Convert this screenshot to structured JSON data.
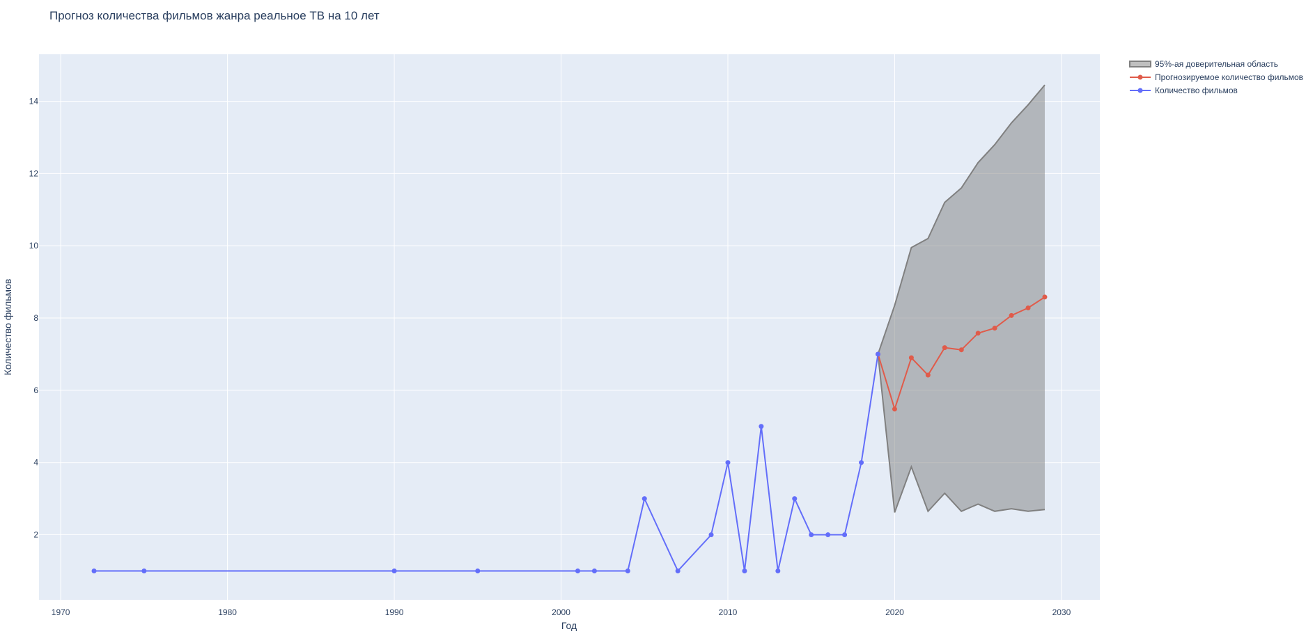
{
  "chart_data": {
    "type": "line",
    "title": "Прогноз количества фильмов жанра реальное ТВ на 10 лет",
    "xlabel": "Год",
    "ylabel": "Количество фильмов",
    "xlim": [
      1968.7,
      2032.3
    ],
    "ylim": [
      0.2,
      15.3
    ],
    "x_ticks": [
      1970,
      1980,
      1990,
      2000,
      2010,
      2020,
      2030
    ],
    "y_ticks": [
      2,
      4,
      6,
      8,
      10,
      12,
      14
    ],
    "grid": true,
    "legend_position": "top-right",
    "series": [
      {
        "name": "95%-ая доверительная область",
        "kind": "band",
        "color": "#808080",
        "fill": "rgba(128,128,128,0.5)",
        "x": [
          2019,
          2020,
          2021,
          2022,
          2023,
          2024,
          2025,
          2026,
          2027,
          2028,
          2029
        ],
        "upper": [
          7.0,
          8.35,
          9.95,
          10.2,
          11.2,
          11.6,
          12.3,
          12.8,
          13.4,
          13.9,
          14.45
        ],
        "lower": [
          7.0,
          2.62,
          3.88,
          2.65,
          3.15,
          2.65,
          2.85,
          2.65,
          2.72,
          2.65,
          2.7
        ]
      },
      {
        "name": "Прогнозируемое количество фильмов",
        "kind": "line",
        "color": "#e05b4a",
        "x": [
          2019,
          2020,
          2021,
          2022,
          2023,
          2024,
          2025,
          2026,
          2027,
          2028,
          2029
        ],
        "y": [
          7.0,
          5.48,
          6.9,
          6.42,
          7.18,
          7.12,
          7.58,
          7.72,
          8.07,
          8.28,
          8.58
        ]
      },
      {
        "name": "Количество фильмов",
        "kind": "line",
        "color": "#636efa",
        "x": [
          1972,
          1975,
          1990,
          1995,
          2001,
          2002,
          2004,
          2005,
          2007,
          2009,
          2010,
          2011,
          2012,
          2013,
          2014,
          2015,
          2016,
          2017,
          2018,
          2019
        ],
        "y": [
          1,
          1,
          1,
          1,
          1,
          1,
          1,
          3,
          1,
          2,
          4,
          1,
          5,
          1,
          3,
          2,
          2,
          2,
          4,
          7
        ]
      }
    ]
  }
}
